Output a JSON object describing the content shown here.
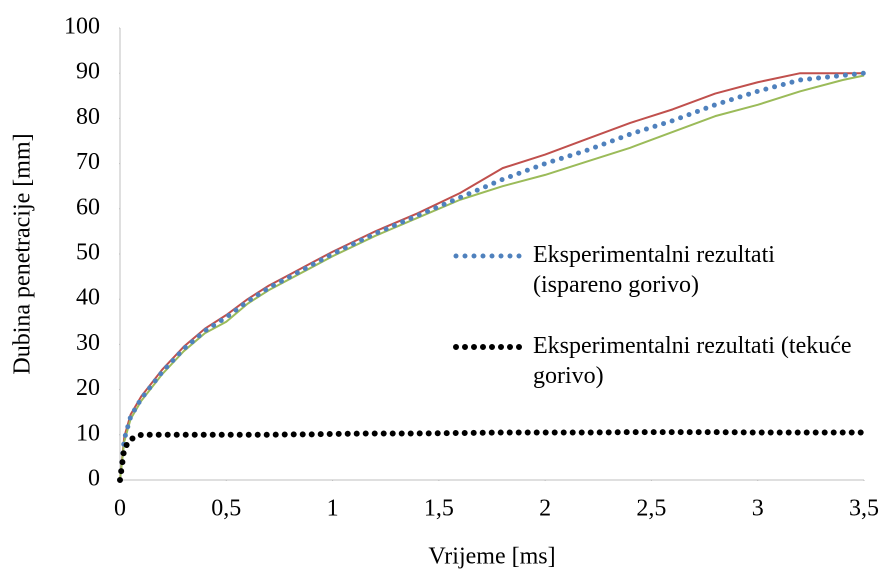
{
  "chart_data": {
    "type": "line",
    "x_label": "Vrijeme [ms]",
    "y_label": "Dubina penetracije [mm]",
    "x": [
      0,
      0.02,
      0.05,
      0.1,
      0.2,
      0.3,
      0.4,
      0.5,
      0.6,
      0.7,
      0.8,
      0.9,
      1.0,
      1.2,
      1.4,
      1.6,
      1.8,
      2.0,
      2.2,
      2.4,
      2.6,
      2.8,
      3.0,
      3.2,
      3.4,
      3.5
    ],
    "series": [
      {
        "color": "#c0504d",
        "style": "solid",
        "values": [
          0,
          9.5,
          14.5,
          18.5,
          24.5,
          29.5,
          33.5,
          36.5,
          40,
          43,
          45.5,
          48,
          50.5,
          55,
          59,
          63.5,
          69,
          72,
          75.5,
          79,
          82,
          85.5,
          88,
          90,
          90,
          90
        ]
      },
      {
        "color": "#9bbb59",
        "style": "solid",
        "values": [
          0,
          8.5,
          13.5,
          17.5,
          23.5,
          28.5,
          32.5,
          35,
          39,
          42,
          44.5,
          47,
          49.5,
          54,
          58,
          62,
          65,
          67.5,
          70.5,
          73.5,
          77,
          80.5,
          83,
          86,
          88.5,
          89.5
        ]
      },
      {
        "name": "Eksperimentalni rezultati (ispareno gorivo)",
        "color": "#4f81bd",
        "style": "dotted",
        "values": [
          0,
          9,
          14,
          18,
          24,
          29,
          33,
          36,
          39.5,
          42.5,
          45,
          47.5,
          50,
          54.5,
          58.5,
          62.5,
          66.5,
          70,
          73,
          76.5,
          79.5,
          83,
          86,
          88.5,
          89.5,
          90
        ]
      },
      {
        "name": "Eksperimentalni rezultati (tekuće gorivo)",
        "color": "#000000",
        "style": "dotted",
        "values": [
          0,
          7,
          9,
          10,
          10,
          10,
          10,
          10,
          10,
          10,
          10.1,
          10.1,
          10.2,
          10.3,
          10.3,
          10.4,
          10.5,
          10.5,
          10.5,
          10.6,
          10.6,
          10.6,
          10.5,
          10.5,
          10.5,
          10.5
        ]
      }
    ],
    "xlim": [
      0,
      3.5
    ],
    "xticks": [
      0,
      {
        "value": 0.5,
        "label": "0,5"
      },
      1,
      {
        "value": 1.5,
        "label": "1,5"
      },
      2,
      {
        "value": 2.5,
        "label": "2,5"
      },
      3,
      {
        "value": 3.5,
        "label": "3,5"
      }
    ],
    "ylim": [
      0,
      100
    ],
    "yticks": [
      0,
      10,
      20,
      30,
      40,
      50,
      60,
      70,
      80,
      90,
      100
    ],
    "grid": false
  }
}
